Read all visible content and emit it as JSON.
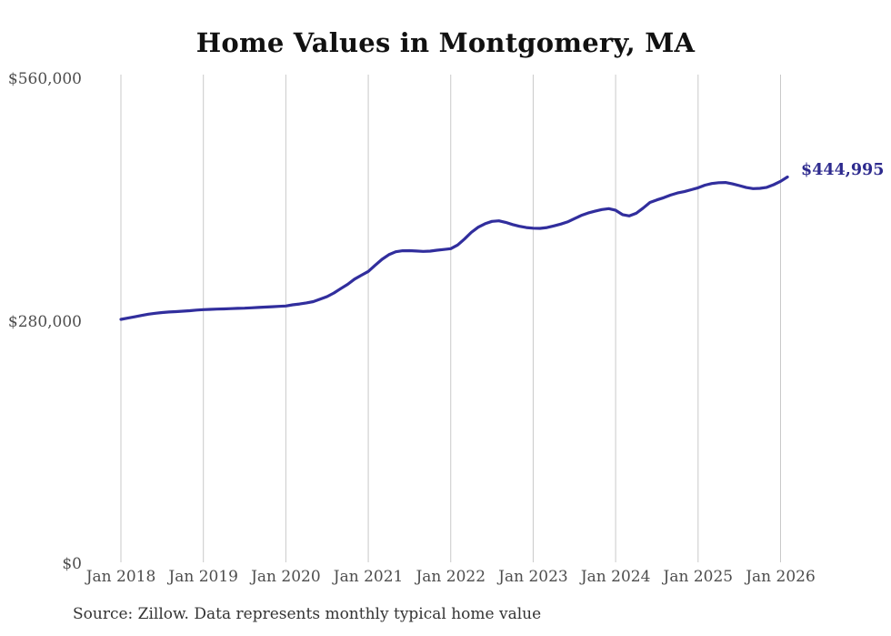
{
  "chart_data": {
    "type": "line",
    "title": "Home Values in Montgomery, MA",
    "source_note": "Source: Zillow. Data represents monthly typical home value",
    "end_label": "$444,995",
    "latest_value": 444995,
    "legend": "none",
    "grid": "vertical-gridlines-only",
    "line_color": "#312e9d",
    "end_label_color": "#2d2a8e",
    "gridline_color": "#c9c9c9",
    "tick_color": "#4d4d4d",
    "y_axis": {
      "min": 0,
      "max": 560000,
      "tick_labels": [
        "$0",
        "$280,000",
        "$560,000"
      ],
      "tick_values": [
        0,
        280000,
        560000
      ]
    },
    "x_axis": {
      "tick_labels": [
        "Jan 2018",
        "Jan 2019",
        "Jan 2020",
        "Jan 2021",
        "Jan 2022",
        "Jan 2023",
        "Jan 2024",
        "Jan 2025",
        "Jan 2026"
      ]
    },
    "series": [
      {
        "name": "Monthly typical home value",
        "months": [
          "Jan 2018",
          "Feb 2018",
          "Mar 2018",
          "Apr 2018",
          "May 2018",
          "Jun 2018",
          "Jul 2018",
          "Aug 2018",
          "Sep 2018",
          "Oct 2018",
          "Nov 2018",
          "Dec 2018",
          "Jan 2019",
          "Feb 2019",
          "Mar 2019",
          "Apr 2019",
          "May 2019",
          "Jun 2019",
          "Jul 2019",
          "Aug 2019",
          "Sep 2019",
          "Oct 2019",
          "Nov 2019",
          "Dec 2019",
          "Jan 2020",
          "Feb 2020",
          "Mar 2020",
          "Apr 2020",
          "May 2020",
          "Jun 2020",
          "Jul 2020",
          "Aug 2020",
          "Sep 2020",
          "Oct 2020",
          "Nov 2020",
          "Dec 2020",
          "Jan 2021",
          "Feb 2021",
          "Mar 2021",
          "Apr 2021",
          "May 2021",
          "Jun 2021",
          "Jul 2021",
          "Aug 2021",
          "Sep 2021",
          "Oct 2021",
          "Nov 2021",
          "Dec 2021",
          "Jan 2022",
          "Feb 2022",
          "Mar 2022",
          "Apr 2022",
          "May 2022",
          "Jun 2022",
          "Jul 2022",
          "Aug 2022",
          "Sep 2022",
          "Oct 2022",
          "Nov 2022",
          "Dec 2022",
          "Jan 2023",
          "Feb 2023",
          "Mar 2023",
          "Apr 2023",
          "May 2023",
          "Jun 2023",
          "Jul 2023",
          "Aug 2023",
          "Sep 2023",
          "Oct 2023",
          "Nov 2023",
          "Dec 2023",
          "Jan 2024",
          "Feb 2024",
          "Mar 2024",
          "Apr 2024",
          "May 2024",
          "Jun 2024",
          "Jul 2024",
          "Aug 2024",
          "Sep 2024",
          "Oct 2024",
          "Nov 2024",
          "Dec 2024",
          "Jan 2025",
          "Feb 2025",
          "Mar 2025",
          "Apr 2025",
          "May 2025",
          "Jun 2025",
          "Jul 2025",
          "Aug 2025",
          "Sep 2025",
          "Oct 2025",
          "Nov 2025",
          "Dec 2025",
          "Jan 2026",
          "Feb 2026"
        ],
        "values": [
          280500,
          282000,
          283500,
          285000,
          286500,
          287600,
          288400,
          289000,
          289500,
          290000,
          290500,
          291200,
          291800,
          292100,
          292400,
          292600,
          292900,
          293200,
          293500,
          293900,
          294300,
          294700,
          295100,
          295500,
          296000,
          297300,
          298300,
          299500,
          301000,
          303800,
          306800,
          311000,
          316000,
          321000,
          327000,
          331500,
          335900,
          342900,
          349900,
          355200,
          358600,
          359700,
          359900,
          359400,
          359000,
          359300,
          360400,
          361200,
          362200,
          366400,
          373300,
          381000,
          387000,
          391000,
          393700,
          394300,
          392500,
          390000,
          388000,
          386500,
          385800,
          385600,
          386500,
          388400,
          390500,
          393000,
          396800,
          400500,
          403300,
          405500,
          407300,
          408400,
          406500,
          401500,
          400000,
          403000,
          409000,
          415500,
          418500,
          421000,
          424000,
          426500,
          428000,
          430200,
          432500,
          435500,
          437400,
          438300,
          438500,
          437000,
          435000,
          432800,
          431500,
          431800,
          433000,
          436000,
          439900,
          444995
        ]
      }
    ]
  }
}
